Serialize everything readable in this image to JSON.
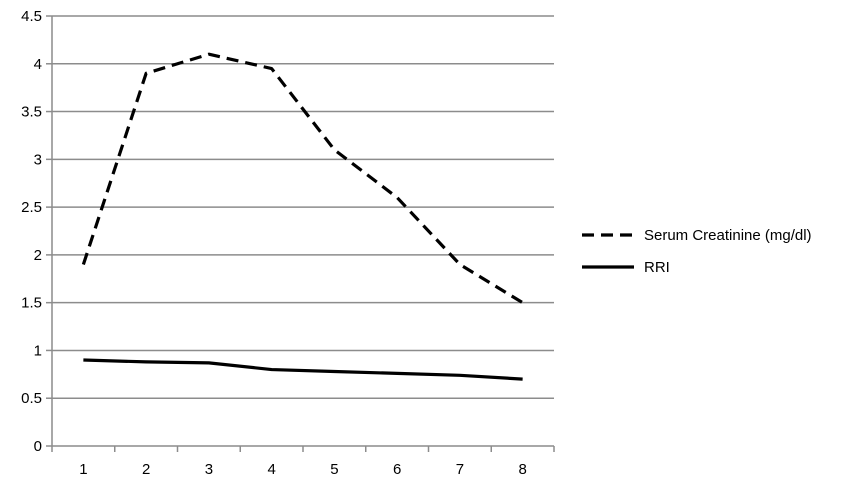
{
  "chart_data": {
    "type": "line",
    "title": "",
    "xlabel": "",
    "ylabel": "",
    "x": [
      1,
      2,
      3,
      4,
      5,
      6,
      7,
      8
    ],
    "ylim": [
      0,
      4.5
    ],
    "yticks": [
      0,
      0.5,
      1,
      1.5,
      2,
      2.5,
      3,
      3.5,
      4,
      4.5
    ],
    "ytick_labels": [
      "0",
      "0.5",
      "1",
      "1.5",
      "2",
      "2.5",
      "3",
      "3.5",
      "4",
      "4.5"
    ],
    "xtick_labels": [
      "1",
      "2",
      "3",
      "4",
      "5",
      "6",
      "7",
      "8"
    ],
    "grid": "horizontal",
    "legend_position": "right",
    "series": [
      {
        "name": "Serum Creatinine (mg/dl)",
        "style": "dashed",
        "color": "#000000",
        "values": [
          1.9,
          3.9,
          4.1,
          3.95,
          3.1,
          2.6,
          1.9,
          1.5
        ]
      },
      {
        "name": "RRI",
        "style": "solid",
        "color": "#000000",
        "values": [
          0.9,
          0.88,
          0.87,
          0.8,
          0.78,
          0.76,
          0.74,
          0.7
        ]
      }
    ]
  }
}
